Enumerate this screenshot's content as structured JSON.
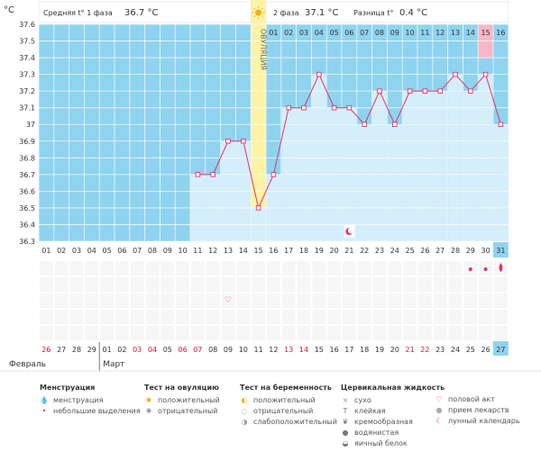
{
  "chart_data": {
    "type": "line",
    "title": "",
    "ylabel": "°C",
    "ylim": [
      36.3,
      37.6
    ],
    "yticks": [
      "36.3",
      "36.4",
      "36.5",
      "36.6",
      "36.7",
      "36.8",
      "36.9",
      "37",
      "37.1",
      "37.2",
      "37.3",
      "37.4",
      "37.5",
      "37.6"
    ],
    "cycle_days": [
      "01",
      "02",
      "03",
      "04",
      "05",
      "06",
      "07",
      "08",
      "09",
      "10",
      "11",
      "12",
      "13",
      "14",
      "15",
      "16",
      "17",
      "18",
      "19",
      "20",
      "21",
      "22",
      "23",
      "24",
      "25",
      "26",
      "27",
      "28",
      "29",
      "30",
      "31"
    ],
    "temperature_start_day": 11,
    "temperature_values": [
      36.7,
      36.7,
      36.9,
      36.9,
      36.5,
      36.7,
      37.1,
      37.1,
      37.3,
      37.1,
      37.1,
      37.0,
      37.2,
      37.0,
      37.2,
      37.2,
      37.2,
      37.3,
      37.2,
      37.3,
      37.0
    ],
    "ovulation_day": 15,
    "ovulation_label": "ОВУЛЯЦИЯ",
    "phase2_day_labels": [
      "01",
      "02",
      "03",
      "04",
      "05",
      "06",
      "07",
      "08",
      "09",
      "10",
      "11",
      "12",
      "13",
      "14",
      "15",
      "16"
    ],
    "phase2_highlight_day": "15",
    "phase1_avg_label": "Средняя t° 1 фаза",
    "phase1_avg_value": "36.7 °C",
    "phase2_label": "2 фаза",
    "phase2_value": "37.1 °C",
    "diff_label": "Разница t°",
    "diff_value": "0.4 °C",
    "calendar_dates": [
      "26",
      "27",
      "28",
      "29",
      "01",
      "02",
      "03",
      "04",
      "05",
      "06",
      "07",
      "08",
      "09",
      "10",
      "11",
      "12",
      "13",
      "14",
      "15",
      "16",
      "17",
      "18",
      "19",
      "20",
      "21",
      "22",
      "23",
      "24",
      "25",
      "26",
      "27"
    ],
    "calendar_red_dates_index": [
      0,
      6,
      7,
      9,
      10,
      16,
      17,
      24,
      25
    ],
    "month_labels": [
      "Февраль",
      "Март"
    ],
    "month_break_index": 4,
    "current_day_index": 30,
    "colors": {
      "grid_bg": "#dcdcdc",
      "phase1_bg": "#8fd3ef",
      "phase2_bg": "#8fd3ef",
      "bar_fill": "#d4eefa",
      "line": "#e8306a",
      "ovulation": "#fdf3a6",
      "highlight": "#f6b7c6",
      "current_day": "#8fd3ef",
      "red_text": "#e0103c"
    }
  },
  "legend": {
    "menstruation": {
      "title": "Менструация",
      "items": [
        "менструация",
        "небольшие выделения"
      ]
    },
    "ovulation_test": {
      "title": "Тест на овуляцию",
      "items": [
        "положительный",
        "отрицательный"
      ]
    },
    "pregnancy_test": {
      "title": "Тест на беременность",
      "items": [
        "положительный",
        "отрицательный",
        "слабоположительный"
      ]
    },
    "cervical": {
      "title": "Цервикальная жидкость",
      "items": [
        "сухо",
        "клейкая",
        "кремообразная",
        "водянистая",
        "яичный белок"
      ]
    },
    "other": {
      "items": [
        "половой акт",
        "прием лекарств",
        "лунный календарь"
      ]
    }
  }
}
